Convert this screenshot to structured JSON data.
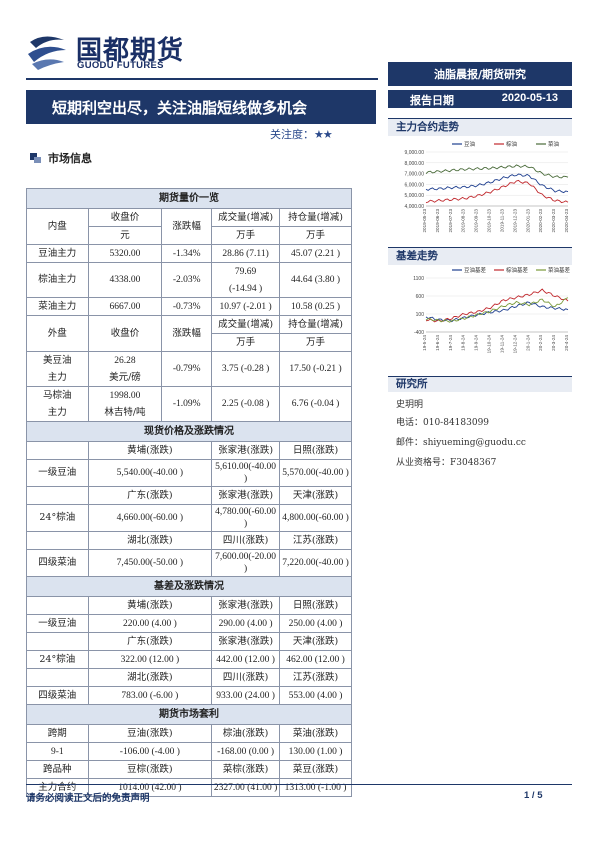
{
  "header": {
    "logo_cn": "国都期货",
    "logo_en": "GUODU FUTURES",
    "tag": "油脂晨报/期货研究",
    "report_date_label": "报告日期",
    "report_date": "2020-05-13",
    "title": "短期利空出尽，关注油脂短线做多机会",
    "focus_label": "关注度：",
    "focus_stars": "★★"
  },
  "section_title": "市场信息",
  "table": {
    "futures_title": "期货量价一览",
    "col_domestic": "内盘",
    "col_close": "收盘价",
    "col_close_unit": "元",
    "col_change": "涨跌幅",
    "col_volume": "成交量(增减)",
    "col_volume_unit": "万手",
    "col_oi": "持仓量(增减)",
    "col_oi_unit": "万手",
    "domestic_rows": [
      {
        "name": "豆油主力",
        "close": "5320.00",
        "change": "-1.34%",
        "volume": "28.86 (7.11)",
        "oi": "45.07 (2.21 )"
      },
      {
        "name": "棕油主力",
        "close": "4338.00",
        "change": "-2.03%",
        "volume": "79.69",
        "volume2": "(-14.94 )",
        "oi": "44.64 (3.80 )"
      },
      {
        "name": "菜油主力",
        "close": "6667.00",
        "change": "-0.73%",
        "volume": "10.97 (-2.01 )",
        "oi": "10.58 (0.25 )"
      }
    ],
    "col_foreign": "外盘",
    "foreign_rows": [
      {
        "name1": "美豆油",
        "name2": "主力",
        "close1": "26.28",
        "close2": "美元/磅",
        "change": "-0.79%",
        "volume": "3.75 (-0.28 )",
        "oi": "17.50 (-0.21 )"
      },
      {
        "name1": "马棕油",
        "name2": "主力",
        "close1": "1998.00",
        "close2": "林吉特/吨",
        "change": "-1.09%",
        "volume": "2.25 (-0.08 )",
        "oi": "6.76 (-0.04 )"
      }
    ],
    "spot_title": "现货价格及涨跌情况",
    "spot": [
      {
        "h1": "黄埔(涨跌)",
        "h2": "张家港(涨跌)",
        "h3": "日照(涨跌)",
        "name": "一级豆油",
        "v1": "5,540.00(-40.00 )",
        "v2": "5,610.00(-40.00 )",
        "v3": "5,570.00(-40.00 )"
      },
      {
        "h1": "广东(涨跌)",
        "h2": "张家港(涨跌)",
        "h3": "天津(涨跌)",
        "name": "24°棕油",
        "v1": "4,660.00(-60.00 )",
        "v2": "4,780.00(-60.00 )",
        "v3": "4,800.00(-60.00 )"
      },
      {
        "h1": "湖北(涨跌)",
        "h2": "四川(涨跌)",
        "h3": "江苏(涨跌)",
        "name": "四级菜油",
        "v1": "7,450.00(-50.00 )",
        "v2": "7,600.00(-20.00 )",
        "v3": "7,220.00(-40.00 )"
      }
    ],
    "basis_title": "基差及涨跌情况",
    "basis": [
      {
        "h1": "黄埔(涨跌)",
        "h2": "张家港(涨跌)",
        "h3": "日照(涨跌)",
        "name": "一级豆油",
        "v1": "220.00 (4.00 )",
        "v2": "290.00 (4.00 )",
        "v3": "250.00 (4.00 )"
      },
      {
        "h1": "广东(涨跌)",
        "h2": "张家港(涨跌)",
        "h3": "天津(涨跌)",
        "name": "24°棕油",
        "v1": "322.00 (12.00 )",
        "v2": "442.00 (12.00 )",
        "v3": "462.00 (12.00 )"
      },
      {
        "h1": "湖北(涨跌)",
        "h2": "四川(涨跌)",
        "h3": "江苏(涨跌)",
        "name": "四级菜油",
        "v1": "783.00 (-6.00 )",
        "v2": "933.00 (24.00 )",
        "v3": "553.00 (4.00 )"
      }
    ],
    "arb_title": "期货市场套利",
    "arb_h0": "跨期",
    "arb_h1": "豆油(涨跌)",
    "arb_h2": "棕油(涨跌)",
    "arb_h3": "菜油(涨跌)",
    "arb_row1": {
      "name": "9-1",
      "v1": "-106.00 (-4.00 )",
      "v2": "-168.00  (0.00 )",
      "v3": "130.00    (1.00 )"
    },
    "arb_h4": "跨品种",
    "arb_h5": "豆棕(涨跌)",
    "arb_h6": "菜棕(涨跌)",
    "arb_h7": "菜豆(涨跌)",
    "arb_row2": {
      "name": "主力合约",
      "v1": "1014.00 (42.00 )",
      "v2": "2327.00 (41.00 )",
      "v3": "1313.00 (-1.00 )"
    }
  },
  "right": {
    "trend_title": "主力合约走势",
    "basis_title": "基差走势",
    "research_title": "研究所",
    "analyst": "史玥明",
    "phone": "电话：010-84183099",
    "email": "邮件：shiyueming@guodu.cc",
    "cert": "从业资格号：F3048367"
  },
  "chart_data": [
    {
      "type": "line",
      "title": "",
      "legend_placement": "top",
      "x": [
        "2019-05-23",
        "2019-06-23",
        "2019-07-23",
        "2019-08-23",
        "2019-09-23",
        "2019-10-23",
        "2019-11-23",
        "2019-12-23",
        "2020-01-23",
        "2020-02-23",
        "2020-03-23",
        "2020-04-23"
      ],
      "ylim": [
        4000,
        9000
      ],
      "yticks": [
        "9,000.00",
        "8,000.00",
        "7,000.00",
        "6,000.00",
        "5,000.00",
        "4,000.00"
      ],
      "series": [
        {
          "name": "豆油",
          "color": "#1f3f8f",
          "values": [
            5550,
            5600,
            5700,
            5750,
            5900,
            6200,
            6600,
            6900,
            6800,
            5900,
            5400,
            5320
          ]
        },
        {
          "name": "棕油",
          "color": "#c0282d",
          "values": [
            4400,
            4500,
            4600,
            4700,
            4950,
            5300,
            5800,
            6300,
            6100,
            5000,
            4500,
            4338
          ]
        },
        {
          "name": "菜油",
          "color": "#4a6b3a",
          "values": [
            7100,
            7200,
            7300,
            7400,
            7450,
            7500,
            7600,
            7700,
            7650,
            7000,
            6700,
            6667
          ]
        }
      ]
    },
    {
      "type": "line",
      "title": "",
      "legend_placement": "top",
      "x": [
        "19-5-24",
        "19-6-24",
        "19-7-24",
        "19-8-24",
        "19-9-24",
        "19-10-24",
        "19-11-24",
        "19-12-24",
        "20-1-24",
        "20-2-24",
        "20-3-24",
        "20-4-24"
      ],
      "ylim": [
        -400,
        1100
      ],
      "yticks": [
        "1100",
        "600",
        "100",
        "-400"
      ],
      "series": [
        {
          "name": "豆油基差",
          "color": "#1f3f8f",
          "values": [
            20,
            -60,
            -80,
            0,
            80,
            150,
            200,
            320,
            420,
            300,
            260,
            220
          ]
        },
        {
          "name": "棕油基差",
          "color": "#c0282d",
          "values": [
            -60,
            -100,
            -20,
            100,
            160,
            280,
            480,
            560,
            640,
            760,
            600,
            462
          ]
        },
        {
          "name": "菜油基差",
          "color": "#7a9a3a",
          "values": [
            -40,
            -80,
            -100,
            -20,
            80,
            180,
            320,
            420,
            360,
            500,
            300,
            553
          ]
        }
      ]
    }
  ],
  "footer": {
    "disclaimer": "请务必阅读正文后的免责声明",
    "page": "1 / 5"
  }
}
